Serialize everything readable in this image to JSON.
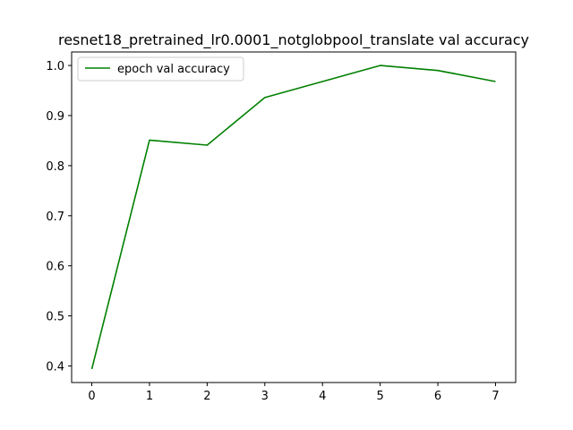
{
  "chart_data": {
    "type": "line",
    "title": "resnet18_pretrained_lr0.0001_notglobpool_translate val accuracy",
    "xlabel": "",
    "ylabel": "",
    "xlim": [
      -0.35,
      7.35
    ],
    "ylim": [
      0.367,
      1.027
    ],
    "x_ticks": [
      0,
      1,
      2,
      3,
      4,
      5,
      6,
      7
    ],
    "x_tick_labels": [
      "0",
      "1",
      "2",
      "3",
      "4",
      "5",
      "6",
      "7"
    ],
    "y_ticks": [
      0.4,
      0.5,
      0.6,
      0.7,
      0.8,
      0.9,
      1.0
    ],
    "y_tick_labels": [
      "0.4",
      "0.5",
      "0.6",
      "0.7",
      "0.8",
      "0.9",
      "1.0"
    ],
    "grid": false,
    "legend_position": "top-left",
    "series": [
      {
        "name": "epoch val accuracy",
        "color": "#008000",
        "x": [
          0,
          1,
          2,
          3,
          4,
          5,
          6,
          7
        ],
        "values": [
          0.394,
          0.851,
          0.841,
          0.936,
          0.968,
          1.0,
          0.99,
          0.968
        ]
      }
    ]
  }
}
